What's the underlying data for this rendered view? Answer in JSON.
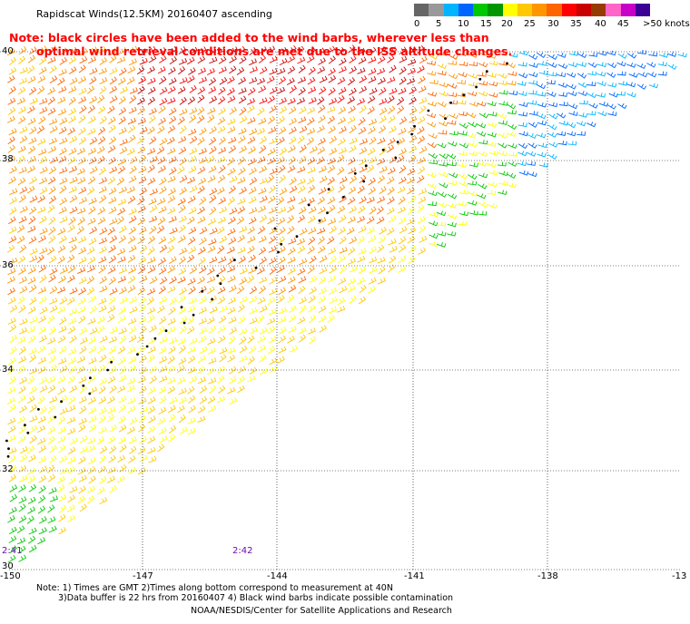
{
  "title": "Rapidscat Winds(12.5KM) 20160407 ascending",
  "note": {
    "line1": "Note: black circles have been added to the wind barbs, wherever less than",
    "line2": "optimal wind retrieval conditions are met due to the ISS altitude changes."
  },
  "legend": {
    "colors": [
      "#666666",
      "#999999",
      "#00b4ff",
      "#0064ff",
      "#00c800",
      "#009600",
      "#ffff00",
      "#ffc800",
      "#ff9600",
      "#ff6400",
      "#ff0000",
      "#c80000",
      "#963c00",
      "#ff64c8",
      "#c800c8",
      "#3c0096"
    ],
    "ticks": [
      "0",
      "5",
      "10",
      "15",
      "20",
      "25",
      "30",
      "35",
      "40",
      "45",
      ">50 knots"
    ]
  },
  "map": {
    "lat_labels": [
      "40",
      "38",
      "36",
      "34",
      "32",
      "30"
    ],
    "lon_labels": [
      "-150",
      "-147",
      "-144",
      "-141",
      "-138",
      "-13"
    ],
    "time_labels": [
      "2:41",
      "2:42"
    ]
  },
  "footer": {
    "line1": "Note: 1) Times are GMT 2)Times along bottom correspond to measurement at 40N",
    "line2": "3)Data buffer is 22 hrs from 20160407 4) Black wind barbs indicate possible contamination",
    "credit": "NOAA/NESDIS/Center for Satellite Applications and Research"
  }
}
